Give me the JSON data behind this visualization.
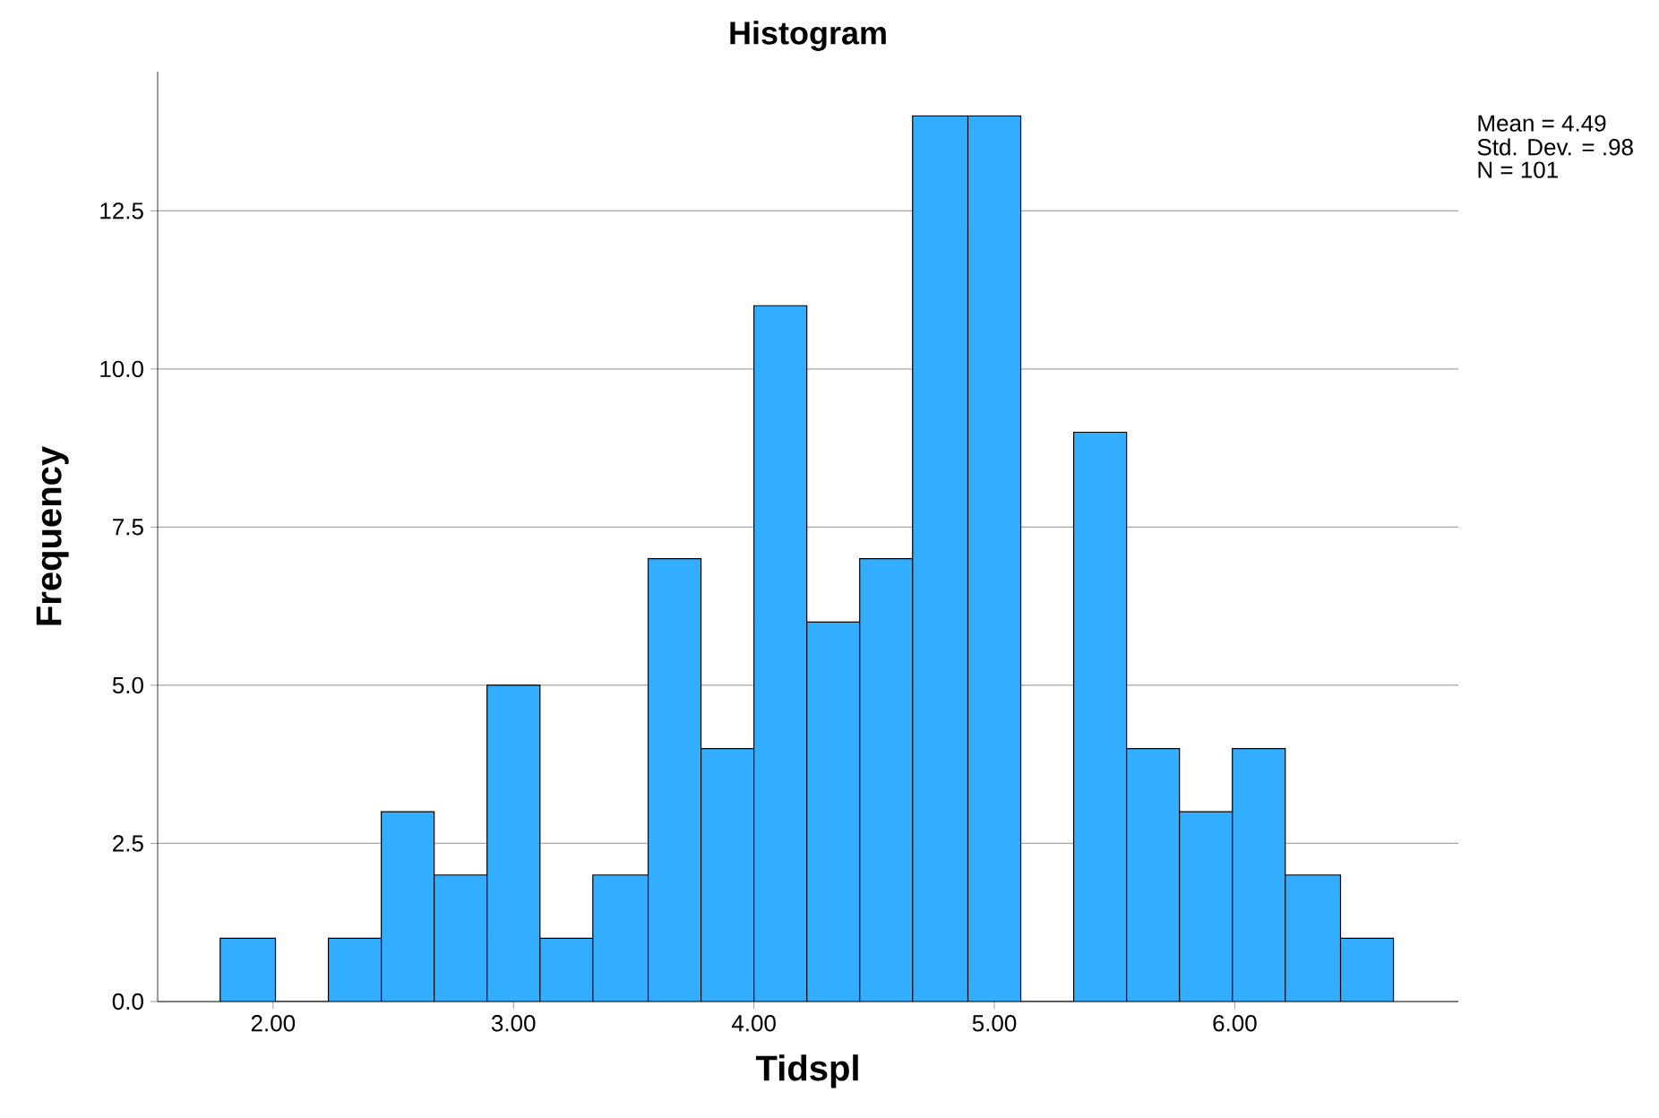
{
  "chart_data": {
    "type": "histogram",
    "title": "Histogram",
    "xlabel": "Tidspl",
    "ylabel": "Frequency",
    "bins": [
      1.78,
      2.01,
      2.23,
      2.45,
      2.67,
      2.89,
      3.11,
      3.33,
      3.56,
      3.78,
      4.0,
      4.22,
      4.44,
      4.66,
      4.89,
      5.11,
      5.33,
      5.55,
      5.77,
      5.99,
      6.21,
      6.44,
      6.66
    ],
    "values": [
      1,
      0,
      1,
      3,
      2,
      5,
      1,
      2,
      7,
      4,
      11,
      6,
      7,
      14,
      14,
      0,
      9,
      4,
      3,
      4,
      2,
      1
    ],
    "color": "#33adff",
    "xlim": [
      1.52,
      6.93
    ],
    "ylim": [
      0,
      14.7
    ],
    "xticks": [
      {
        "value": 2,
        "label": "2.00"
      },
      {
        "value": 3,
        "label": "3.00"
      },
      {
        "value": 4,
        "label": "4.00"
      },
      {
        "value": 5,
        "label": "5.00"
      },
      {
        "value": 6,
        "label": "6.00"
      }
    ],
    "yticks": [
      {
        "value": 0,
        "label": "0.0"
      },
      {
        "value": 2.5,
        "label": "2.5"
      },
      {
        "value": 5,
        "label": "5.0"
      },
      {
        "value": 7.5,
        "label": "7.5"
      },
      {
        "value": 10,
        "label": "10.0"
      },
      {
        "value": 12.5,
        "label": "12.5"
      }
    ],
    "grid": "y",
    "annotations": [
      "Mean = 4.49",
      "Std. Dev. = .98",
      "N = 101"
    ]
  }
}
